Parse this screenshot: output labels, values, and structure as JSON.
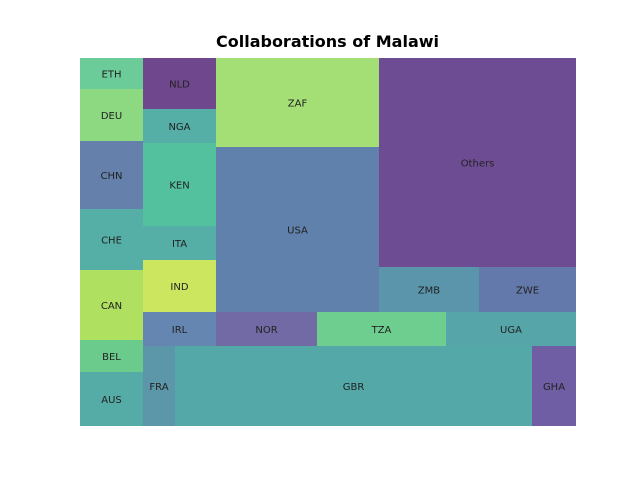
{
  "chart_data": {
    "type": "treemap",
    "title": "Collaborations of Malawi",
    "cells": [
      {
        "label": "ETH",
        "value": 11,
        "color": "#57c58c"
      },
      {
        "label": "DEU",
        "value": 19,
        "color": "#7cd46f"
      },
      {
        "label": "CHN",
        "value": 25,
        "color": "#4f6e9f"
      },
      {
        "label": "CHE",
        "value": 22,
        "color": "#3ea49b"
      },
      {
        "label": "CAN",
        "value": 26,
        "color": "#a4dc4a"
      },
      {
        "label": "BEL",
        "value": 12,
        "color": "#56c47c"
      },
      {
        "label": "AUS",
        "value": 20,
        "color": "#3e9f99"
      },
      {
        "label": "NLD",
        "value": 13,
        "color": "#5a2d7c"
      },
      {
        "label": "NGA",
        "value": 9,
        "color": "#3ea49b"
      },
      {
        "label": "KEN",
        "value": 20,
        "color": "#3bb891"
      },
      {
        "label": "ITA",
        "value": 9,
        "color": "#3ea49b"
      },
      {
        "label": "IND",
        "value": 13,
        "color": "#c6e34a"
      },
      {
        "label": "IRL",
        "value": 9,
        "color": "#4f75a5"
      },
      {
        "label": "FRA",
        "value": 6,
        "color": "#45889d"
      },
      {
        "label": "ZAF",
        "value": 70,
        "color": "#96db62"
      },
      {
        "label": "USA",
        "value": 140,
        "color": "#4a6f9f"
      },
      {
        "label": "NOR",
        "value": 16,
        "color": "#5d5597"
      },
      {
        "label": "TZA",
        "value": 20,
        "color": "#59c77f"
      },
      {
        "label": "UGA",
        "value": 20,
        "color": "#3e999d"
      },
      {
        "label": "GBR",
        "value": 135,
        "color": "#3c9c9c"
      },
      {
        "label": "GHA",
        "value": 17,
        "color": "#5c4898"
      },
      {
        "label": "Others",
        "value": 185,
        "color": "#5a3384"
      },
      {
        "label": "ZMB",
        "value": 38,
        "color": "#43869f"
      },
      {
        "label": "ZWE",
        "value": 37,
        "color": "#4f669f"
      }
    ]
  }
}
